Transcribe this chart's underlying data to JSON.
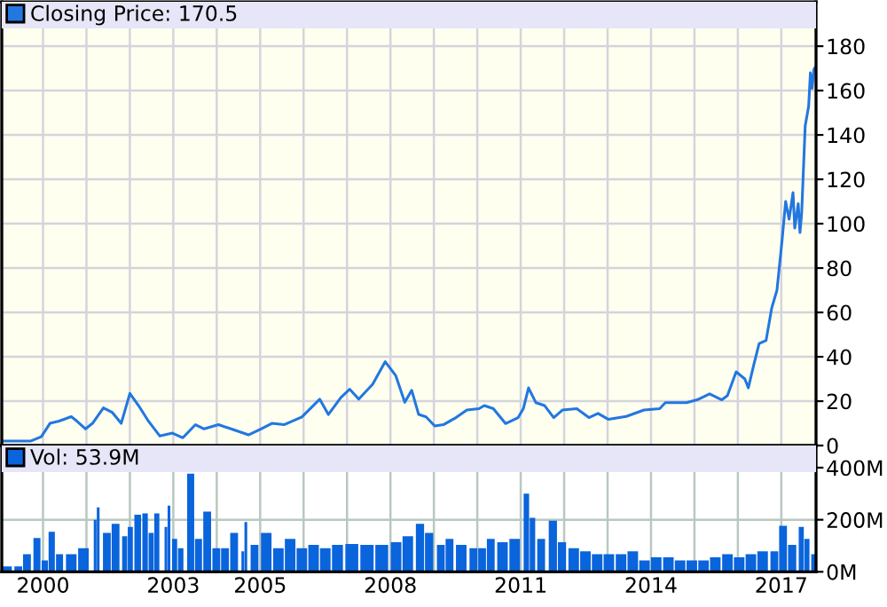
{
  "chart_data": [
    {
      "type": "line",
      "series": [
        {
          "name": "Closing Price: 170.5",
          "color": "#2277e0",
          "x": [
            1999.09,
            1999.71,
            1999.96,
            2000.16,
            2000.37,
            2000.65,
            2000.78,
            2000.98,
            2001.14,
            2001.39,
            2001.59,
            2001.8,
            2002.0,
            2002.2,
            2002.41,
            2002.69,
            2002.98,
            2003.22,
            2003.51,
            2003.71,
            2004.04,
            2004.33,
            2004.73,
            2005.02,
            2005.27,
            2005.55,
            2005.96,
            2006.37,
            2006.57,
            2006.86,
            2007.06,
            2007.27,
            2007.59,
            2007.88,
            2008.12,
            2008.33,
            2008.49,
            2008.65,
            2008.82,
            2009.02,
            2009.22,
            2009.51,
            2009.76,
            2010.04,
            2010.16,
            2010.37,
            2010.65,
            2010.94,
            2011.06,
            2011.18,
            2011.35,
            2011.55,
            2011.76,
            2011.96,
            2012.29,
            2012.57,
            2012.78,
            2013.02,
            2013.43,
            2013.84,
            2014.2,
            2014.33,
            2014.82,
            2015.06,
            2015.35,
            2015.63,
            2015.76,
            2015.96,
            2016.16,
            2016.24,
            2016.37,
            2016.49,
            2016.65,
            2016.78,
            2016.9,
            2017.02,
            2017.1,
            2017.18,
            2017.27,
            2017.31,
            2017.39,
            2017.43,
            2017.47,
            2017.55,
            2017.63,
            2017.67,
            2017.71,
            2017.75,
            2017.78
          ],
          "values": [
            2,
            2,
            4,
            10,
            11,
            13,
            11,
            7.5,
            10,
            17,
            15,
            10,
            23.5,
            18,
            11.5,
            4.3,
            5.6,
            3.5,
            9.4,
            7.5,
            9.4,
            7.5,
            4.8,
            7.5,
            10,
            9.4,
            12.9,
            20.9,
            14,
            21.7,
            25.4,
            20.9,
            27.6,
            37.8,
            31.6,
            19.5,
            24.9,
            14,
            12.9,
            8.8,
            9.4,
            12.6,
            16,
            16.6,
            18,
            16.6,
            9.9,
            12.6,
            16.6,
            26,
            19.3,
            18,
            12.6,
            16,
            16.6,
            12.6,
            14.5,
            11.8,
            13.1,
            16,
            16.6,
            19.3,
            19.3,
            20.6,
            23.3,
            20.6,
            22.5,
            33.2,
            30,
            26,
            36.7,
            46,
            47.4,
            62,
            70,
            93,
            110,
            102,
            114,
            98,
            109,
            96,
            105,
            144,
            153,
            168,
            161,
            169.5,
            170.5
          ]
        }
      ],
      "xlim": [
        1999.05,
        2017.8
      ],
      "xticks": [
        {
          "value": 2000,
          "label": null
        },
        {
          "value": 2001,
          "label": null
        },
        {
          "value": 2002,
          "label": null
        },
        {
          "value": 2003,
          "label": null
        },
        {
          "value": 2004,
          "label": null
        },
        {
          "value": 2005,
          "label": null
        },
        {
          "value": 2006,
          "label": null
        },
        {
          "value": 2007,
          "label": null
        },
        {
          "value": 2008,
          "label": null
        },
        {
          "value": 2009,
          "label": null
        },
        {
          "value": 2010,
          "label": null
        },
        {
          "value": 2011,
          "label": null
        },
        {
          "value": 2012,
          "label": null
        },
        {
          "value": 2013,
          "label": null
        },
        {
          "value": 2014,
          "label": null
        },
        {
          "value": 2015,
          "label": null
        },
        {
          "value": 2016,
          "label": null
        },
        {
          "value": 2017,
          "label": null
        }
      ],
      "ylim": [
        0,
        200
      ],
      "yticks": [
        0,
        20,
        40,
        60,
        80,
        100,
        120,
        140,
        160,
        180
      ],
      "grid": true,
      "legend": "top left",
      "tick_labels": "y"
    },
    {
      "type": "bar",
      "series": [
        {
          "name": "Vol: 53.9M",
          "color": "#0a64dc",
          "x": [
            1999.16,
            1999.43,
            1999.63,
            1999.86,
            2000.04,
            2000.2,
            2000.38,
            2000.65,
            2000.93,
            2001.2,
            2001.27,
            2001.47,
            2001.67,
            2001.88,
            2002.01,
            2002.18,
            2002.35,
            2002.49,
            2002.62,
            2002.83,
            2002.9,
            2003.03,
            2003.17,
            2003.4,
            2003.58,
            2003.78,
            2003.99,
            2004.19,
            2004.4,
            2004.6,
            2004.67,
            2004.87,
            2005.14,
            2005.42,
            2005.69,
            2005.96,
            2006.23,
            2006.5,
            2006.78,
            2007.11,
            2007.46,
            2007.8,
            2008.13,
            2008.4,
            2008.68,
            2008.89,
            2009.16,
            2009.36,
            2009.63,
            2009.91,
            2010.11,
            2010.31,
            2010.58,
            2010.86,
            2011.13,
            2011.27,
            2011.47,
            2011.74,
            2011.95,
            2012.22,
            2012.49,
            2012.76,
            2013.03,
            2013.31,
            2013.58,
            2013.85,
            2014.12,
            2014.4,
            2014.67,
            2014.94,
            2015.21,
            2015.48,
            2015.76,
            2016.03,
            2016.3,
            2016.57,
            2016.84,
            2017.04,
            2017.25,
            2017.46,
            2017.59,
            2017.77
          ],
          "values": [
            21,
            21,
            68,
            130,
            44,
            154,
            68,
            68,
            91,
            200,
            247,
            149,
            184,
            137,
            172,
            219,
            224,
            149,
            224,
            172,
            254,
            126,
            91,
            377,
            126,
            231,
            91,
            91,
            149,
            79,
            191,
            103,
            149,
            91,
            126,
            91,
            103,
            91,
            103,
            107,
            103,
            103,
            114,
            137,
            184,
            149,
            103,
            126,
            103,
            91,
            91,
            126,
            114,
            126,
            300,
            207,
            126,
            196,
            114,
            91,
            79,
            68,
            68,
            68,
            79,
            44,
            56,
            56,
            44,
            44,
            44,
            56,
            68,
            56,
            68,
            79,
            79,
            177,
            103,
            172,
            126,
            68
          ]
        }
      ],
      "xlim": [
        1999.05,
        2017.8
      ],
      "xticks": [
        {
          "value": 2000,
          "label": "2000"
        },
        {
          "value": 2001,
          "label": null
        },
        {
          "value": 2002,
          "label": null
        },
        {
          "value": 2003,
          "label": "2003"
        },
        {
          "value": 2004,
          "label": null
        },
        {
          "value": 2005,
          "label": "2005"
        },
        {
          "value": 2006,
          "label": null
        },
        {
          "value": 2007,
          "label": null
        },
        {
          "value": 2008,
          "label": "2008"
        },
        {
          "value": 2009,
          "label": null
        },
        {
          "value": 2010,
          "label": null
        },
        {
          "value": 2011,
          "label": "2011"
        },
        {
          "value": 2012,
          "label": null
        },
        {
          "value": 2013,
          "label": null
        },
        {
          "value": 2014,
          "label": "2014"
        },
        {
          "value": 2015,
          "label": null
        },
        {
          "value": 2016,
          "label": null
        },
        {
          "value": 2017,
          "label": "2017"
        }
      ],
      "ylim": [
        0,
        485
      ],
      "yticks": [
        {
          "value": 0,
          "label": "0M"
        },
        {
          "value": 200,
          "label": "200M"
        },
        {
          "value": 400,
          "label": "400M"
        }
      ],
      "grid": true,
      "legend": "top left"
    }
  ]
}
